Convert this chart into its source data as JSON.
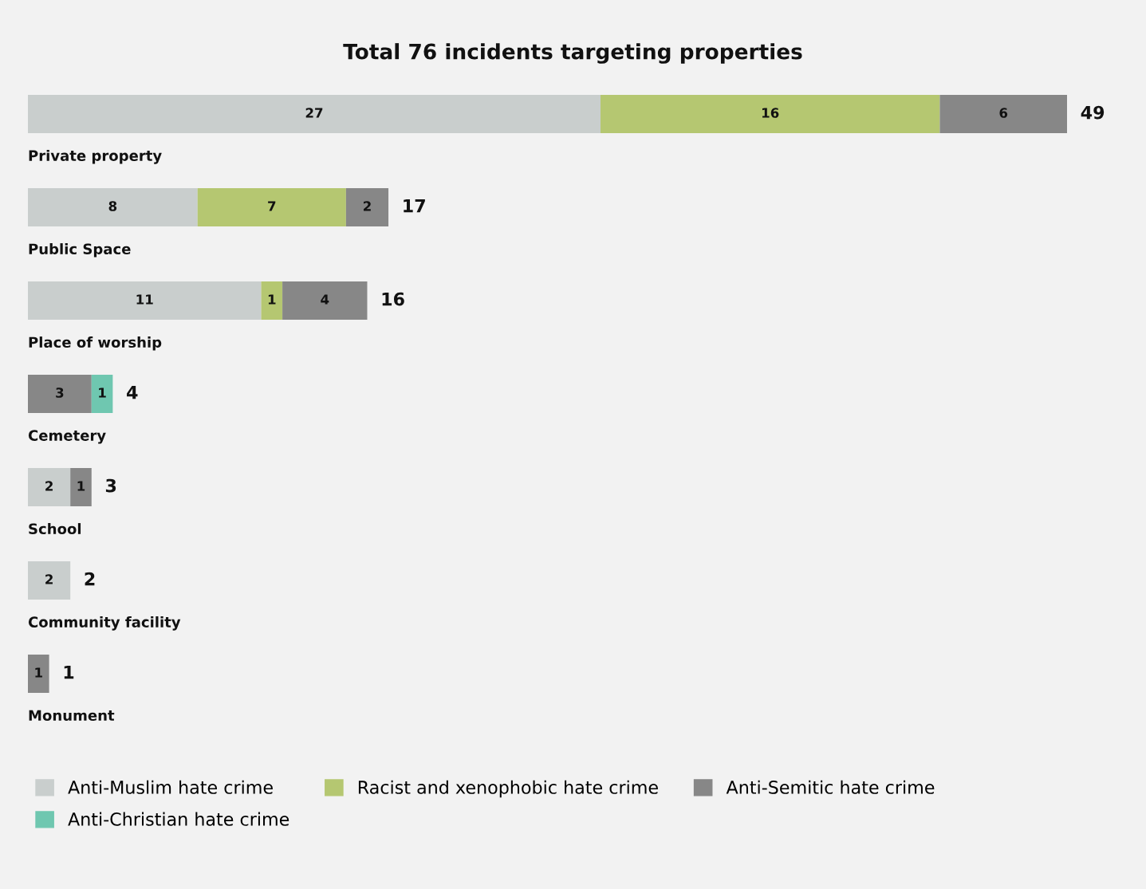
{
  "chart_data": {
    "type": "bar",
    "orientation": "horizontal",
    "stacked": true,
    "title": "Total 76 incidents targeting properties",
    "categories": [
      "Private property",
      "Public Space",
      "Place of worship",
      "Cemetery",
      "School",
      "Community facility",
      "Monument"
    ],
    "series": [
      {
        "name": "Anti-Muslim hate crime",
        "color": "#c9cecd",
        "values": [
          27,
          8,
          11,
          null,
          2,
          2,
          null
        ]
      },
      {
        "name": "Racist and xenophobic hate crime",
        "color": "#b5c771",
        "values": [
          16,
          7,
          1,
          null,
          null,
          null,
          null
        ]
      },
      {
        "name": "Anti-Semitic hate crime",
        "color": "#878787",
        "values": [
          6,
          2,
          4,
          3,
          1,
          null,
          1
        ]
      },
      {
        "name": "Anti-Christian hate crime",
        "color": "#6fc7b0",
        "values": [
          null,
          null,
          null,
          1,
          null,
          null,
          null
        ]
      }
    ],
    "data_labels": true,
    "totals": [
      "49",
      "17",
      "16",
      "4",
      "3",
      "2",
      "1"
    ],
    "legend": "bottom"
  }
}
